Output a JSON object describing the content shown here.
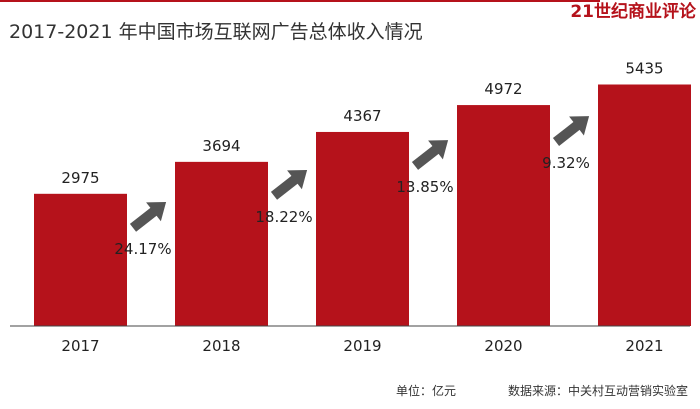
{
  "brand": "21世纪商业评论",
  "colors": {
    "bar": "#b5121b",
    "arrow": "#555555",
    "axis": "#444444",
    "brand": "#b5121b"
  },
  "footer": {
    "unit": "单位：亿元",
    "source": "数据来源：中关村互动营销实验室"
  },
  "chart_data": {
    "type": "bar",
    "title": "2017-2021 年中国市场互联网广告总体收入情况",
    "categories": [
      "2017",
      "2018",
      "2019",
      "2020",
      "2021"
    ],
    "values": [
      2975,
      3694,
      4367,
      4972,
      5435
    ],
    "growth_rates": [
      "24.17%",
      "18.22%",
      "13.85%",
      "9.32%"
    ],
    "ylim": [
      0,
      5800
    ],
    "grid": false,
    "xlabel": "",
    "ylabel": ""
  }
}
